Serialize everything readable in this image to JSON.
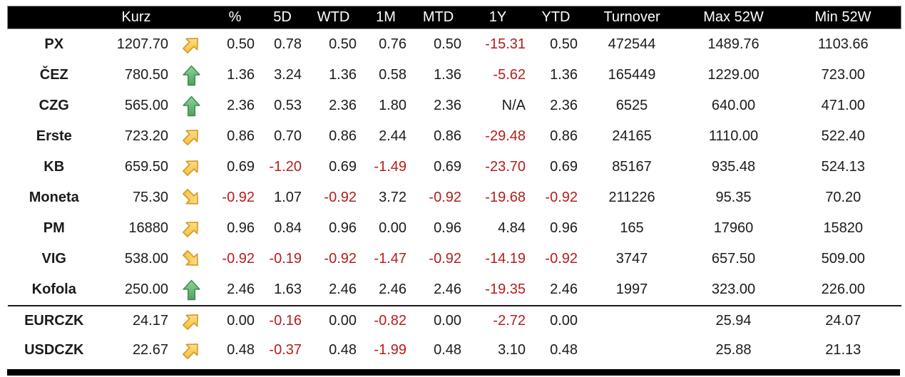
{
  "colors": {
    "header_bg": "#000000",
    "header_text": "#ffffff",
    "body_text": "#1b1b1b",
    "negative_text": "#b71c1c",
    "arrow_gold_fill": "#f9c843",
    "arrow_gold_stroke": "#d99a26",
    "arrow_green_fill": "#63b372",
    "arrow_green_stroke": "#3c8c4e"
  },
  "chart_data": {
    "type": "table",
    "columns": [
      "",
      "Kurz",
      "",
      "%",
      "5D",
      "WTD",
      "1M",
      "MTD",
      "1Y",
      "YTD",
      "Turnover",
      "Max 52W",
      "Min 52W"
    ],
    "rows": [
      {
        "group": "equity",
        "name": "PX",
        "kurz": "1207.70",
        "arrow": "up-right",
        "pct": "0.50",
        "d5": "0.78",
        "wtd": "0.50",
        "m1": "0.76",
        "mtd": "0.50",
        "y1": "-15.31",
        "ytd": "0.50",
        "turnover": "472544",
        "max52w": "1489.76",
        "min52w": "1103.66"
      },
      {
        "group": "equity",
        "name": "ČEZ",
        "kurz": "780.50",
        "arrow": "up",
        "pct": "1.36",
        "d5": "3.24",
        "wtd": "1.36",
        "m1": "0.58",
        "mtd": "1.36",
        "y1": "-5.62",
        "ytd": "1.36",
        "turnover": "165449",
        "max52w": "1229.00",
        "min52w": "723.00"
      },
      {
        "group": "equity",
        "name": "CZG",
        "kurz": "565.00",
        "arrow": "up",
        "pct": "2.36",
        "d5": "0.53",
        "wtd": "2.36",
        "m1": "1.80",
        "mtd": "2.36",
        "y1": "N/A",
        "ytd": "2.36",
        "turnover": "6525",
        "max52w": "640.00",
        "min52w": "471.00"
      },
      {
        "group": "equity",
        "name": "Erste",
        "kurz": "723.20",
        "arrow": "up-right",
        "pct": "0.86",
        "d5": "0.70",
        "wtd": "0.86",
        "m1": "2.44",
        "mtd": "0.86",
        "y1": "-29.48",
        "ytd": "0.86",
        "turnover": "24165",
        "max52w": "1110.00",
        "min52w": "522.40"
      },
      {
        "group": "equity",
        "name": "KB",
        "kurz": "659.50",
        "arrow": "up-right",
        "pct": "0.69",
        "d5": "-1.20",
        "wtd": "0.69",
        "m1": "-1.49",
        "mtd": "0.69",
        "y1": "-23.70",
        "ytd": "0.69",
        "turnover": "85167",
        "max52w": "935.48",
        "min52w": "524.13"
      },
      {
        "group": "equity",
        "name": "Moneta",
        "kurz": "75.30",
        "arrow": "down-right",
        "pct": "-0.92",
        "d5": "1.07",
        "wtd": "-0.92",
        "m1": "3.72",
        "mtd": "-0.92",
        "y1": "-19.68",
        "ytd": "-0.92",
        "turnover": "211226",
        "max52w": "95.35",
        "min52w": "70.20"
      },
      {
        "group": "equity",
        "name": "PM",
        "kurz": "16880",
        "arrow": "up-right",
        "pct": "0.96",
        "d5": "0.84",
        "wtd": "0.96",
        "m1": "0.00",
        "mtd": "0.96",
        "y1": "4.84",
        "ytd": "0.96",
        "turnover": "165",
        "max52w": "17960",
        "min52w": "15820"
      },
      {
        "group": "equity",
        "name": "VIG",
        "kurz": "538.00",
        "arrow": "down-right",
        "pct": "-0.92",
        "d5": "-0.19",
        "wtd": "-0.92",
        "m1": "-1.47",
        "mtd": "-0.92",
        "y1": "-14.19",
        "ytd": "-0.92",
        "turnover": "3747",
        "max52w": "657.50",
        "min52w": "509.00"
      },
      {
        "group": "equity",
        "name": "Kofola",
        "kurz": "250.00",
        "arrow": "up",
        "pct": "2.46",
        "d5": "1.63",
        "wtd": "2.46",
        "m1": "2.46",
        "mtd": "2.46",
        "y1": "-19.35",
        "ytd": "2.46",
        "turnover": "1997",
        "max52w": "323.00",
        "min52w": "226.00"
      },
      {
        "group": "fx",
        "name": "EURCZK",
        "kurz": "24.17",
        "arrow": "up-right",
        "pct": "0.00",
        "d5": "-0.16",
        "wtd": "0.00",
        "m1": "-0.82",
        "mtd": "0.00",
        "y1": "-2.72",
        "ytd": "0.00",
        "turnover": "",
        "max52w": "25.94",
        "min52w": "24.07"
      },
      {
        "group": "fx",
        "name": "USDCZK",
        "kurz": "22.67",
        "arrow": "up-right",
        "pct": "0.48",
        "d5": "-0.37",
        "wtd": "0.48",
        "m1": "-1.99",
        "mtd": "0.48",
        "y1": "3.10",
        "ytd": "0.48",
        "turnover": "",
        "max52w": "25.88",
        "min52w": "21.13"
      }
    ]
  }
}
